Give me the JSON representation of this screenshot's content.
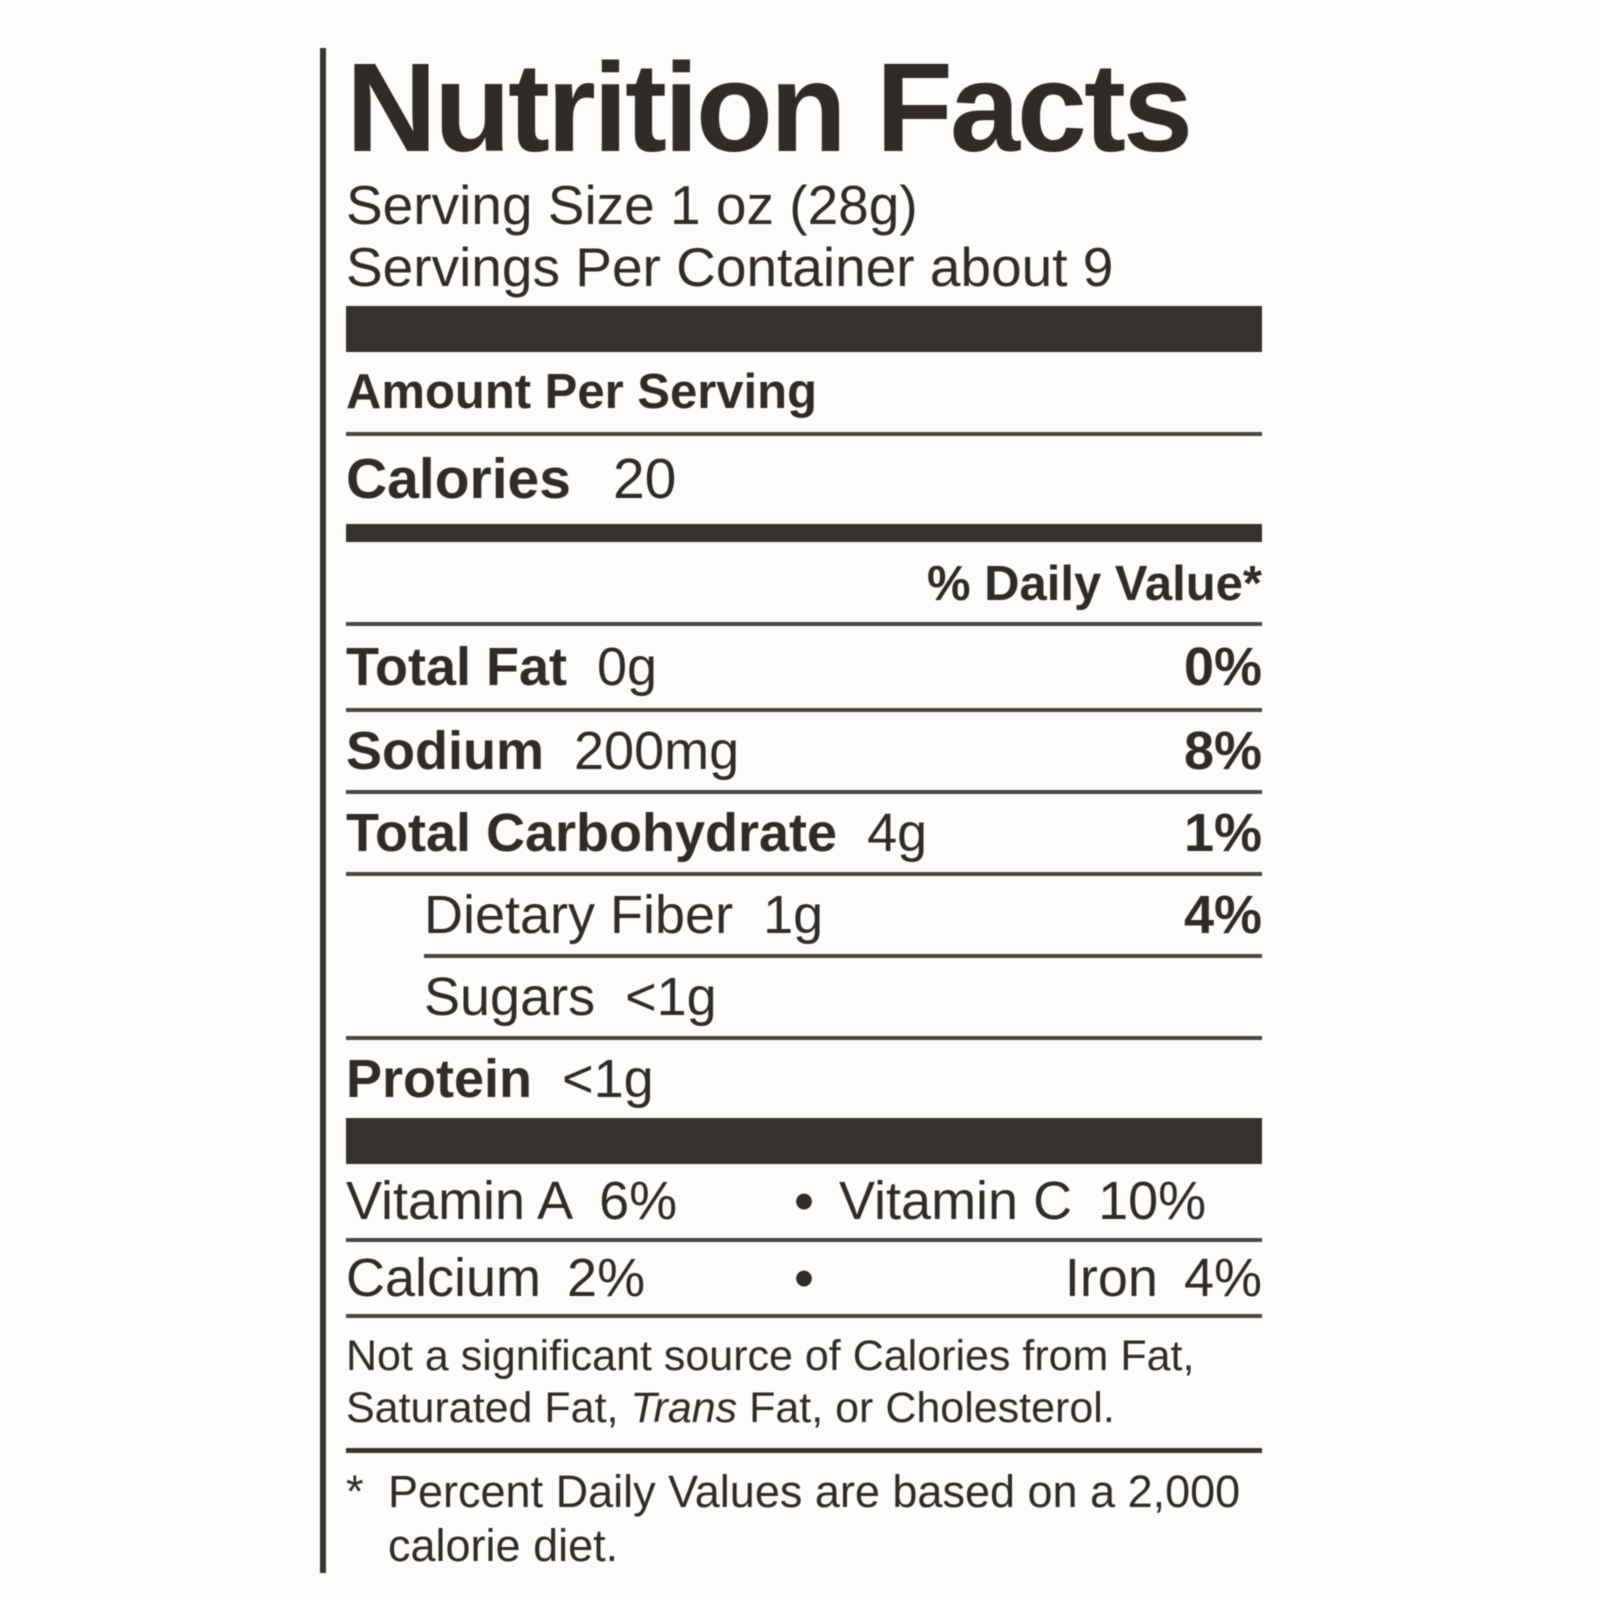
{
  "colors": {
    "ink": "#2f2b28",
    "bar": "#36322e",
    "rule": "#4a4643",
    "rule_dark": "#383430",
    "page_bg": "#fcfcfb",
    "label_bg": "#fdfcfa"
  },
  "header": {
    "title": "Nutrition Facts",
    "serving_size": "Serving Size 1 oz (28g)",
    "servings_per_container": "Servings Per Container about 9"
  },
  "calories": {
    "section_label": "Amount Per Serving",
    "label": "Calories",
    "value": "20"
  },
  "daily_value_header": "% Daily Value*",
  "bullet": "•",
  "nutrients": [
    {
      "label": "Total Fat",
      "value": "0g",
      "dv": "0%"
    },
    {
      "label": "Sodium",
      "value": "200mg",
      "dv": "8%"
    },
    {
      "label": "Total Carbohydrate",
      "value": "4g",
      "dv": "1%"
    },
    {
      "label": "Dietary Fiber",
      "value": "1g",
      "dv": "4%"
    },
    {
      "label": "Sugars",
      "value": "<1g",
      "dv": ""
    },
    {
      "label": "Protein",
      "value": "<1g",
      "dv": ""
    }
  ],
  "vitamins": [
    {
      "left_label": "Vitamin A",
      "left_value": "6%",
      "right_label": "Vitamin C",
      "right_value": "10%"
    },
    {
      "left_label": "Calcium",
      "left_value": "2%",
      "right_label": "Iron",
      "right_value": "4%"
    }
  ],
  "disclaimer": {
    "line1": "Not a significant source of Calories from Fat,",
    "line2_pre": "Saturated Fat, ",
    "line2_italic": "Trans",
    "line2_post": " Fat, or Cholesterol."
  },
  "footnote": {
    "marker": "*",
    "line1": "Percent Daily Values are based on a 2,000",
    "line2": "calorie diet."
  }
}
